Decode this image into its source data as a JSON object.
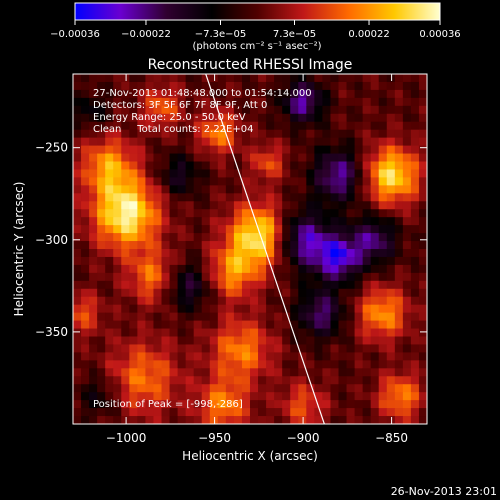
{
  "chart_data": {
    "type": "heatmap",
    "title": "Reconstructed RHESSI Image",
    "xlabel": "Heliocentric X (arcsec)",
    "ylabel": "Heliocentric Y (arcsec)",
    "xlim": [
      -1030,
      -830
    ],
    "ylim": [
      -400,
      -210
    ],
    "x_ticks": [
      -1000,
      -950,
      -900,
      -850
    ],
    "x_tick_labels": [
      "−1000",
      "−950",
      "−900",
      "−850"
    ],
    "y_ticks": [
      -250,
      -300,
      -350
    ],
    "y_tick_labels": [
      "−250",
      "−300",
      "−350"
    ],
    "colorbar": {
      "range": [
        -0.00036,
        0.00036
      ],
      "ticks": [
        -0.00036,
        -0.00022,
        -7.3e-05,
        7.3e-05,
        0.00022,
        0.00036
      ],
      "tick_labels": [
        "−0.00036",
        "−0.00022",
        "−7.3e−05",
        "7.3e−05",
        "0.00022",
        "0.00036"
      ],
      "unit": "(photons cm⁻² s⁻¹ asec⁻²)",
      "colors": [
        "#0000ff",
        "#6a00d0",
        "#300030",
        "#000000",
        "#500000",
        "#c01818",
        "#ff6a00",
        "#ffc800",
        "#ffffd0"
      ]
    },
    "annotations": [
      "27-Nov-2013 01:48:48.000 to 01:54:14.000",
      "Detectors: 3F 5F 6F 7F 8F 9F, Att 0",
      "Energy Range: 25.0 - 50.0 keV",
      "Clean     Total counts: 2.22E+04"
    ],
    "peak_label": "Position of Peak = [-998,-286]",
    "peak_position": [
      -998,
      -286
    ],
    "limb_line": [
      [
        -955,
        -210
      ],
      [
        -888,
        -400
      ]
    ],
    "sources": [
      {
        "x": -1000,
        "y": -286,
        "s": 13,
        "a": 0.95
      },
      {
        "x": -1010,
        "y": -260,
        "s": 11,
        "a": 0.6
      },
      {
        "x": -985,
        "y": -320,
        "s": 10,
        "a": 0.5
      },
      {
        "x": -925,
        "y": -298,
        "s": 12,
        "a": 0.9
      },
      {
        "x": -940,
        "y": -318,
        "s": 10,
        "a": 0.55
      },
      {
        "x": -948,
        "y": -242,
        "s": 8,
        "a": 0.55
      },
      {
        "x": -920,
        "y": -258,
        "s": 7,
        "a": 0.4
      },
      {
        "x": -850,
        "y": -265,
        "s": 11,
        "a": 0.85
      },
      {
        "x": -855,
        "y": -340,
        "s": 10,
        "a": 0.6
      },
      {
        "x": -935,
        "y": -360,
        "s": 12,
        "a": 0.55
      },
      {
        "x": -990,
        "y": -375,
        "s": 14,
        "a": 0.5
      },
      {
        "x": -945,
        "y": -390,
        "s": 10,
        "a": 0.55
      },
      {
        "x": -900,
        "y": -390,
        "s": 9,
        "a": 0.4
      },
      {
        "x": -845,
        "y": -385,
        "s": 9,
        "a": 0.55
      },
      {
        "x": -1025,
        "y": -340,
        "s": 8,
        "a": 0.4
      },
      {
        "x": -980,
        "y": -228,
        "s": 8,
        "a": 0.45
      },
      {
        "x": -900,
        "y": -225,
        "s": 8,
        "a": -0.7
      },
      {
        "x": -880,
        "y": -265,
        "s": 10,
        "a": -0.7
      },
      {
        "x": -900,
        "y": -300,
        "s": 11,
        "a": -0.75
      },
      {
        "x": -880,
        "y": -310,
        "s": 9,
        "a": -0.8
      },
      {
        "x": -860,
        "y": -300,
        "s": 9,
        "a": -0.6
      },
      {
        "x": -890,
        "y": -340,
        "s": 9,
        "a": -0.6
      },
      {
        "x": -965,
        "y": -325,
        "s": 9,
        "a": -0.5
      },
      {
        "x": -970,
        "y": -265,
        "s": 8,
        "a": -0.4
      },
      {
        "x": -1020,
        "y": -230,
        "s": 7,
        "a": -0.3
      },
      {
        "x": -1015,
        "y": -385,
        "s": 8,
        "a": -0.3
      }
    ]
  },
  "footer": {
    "timestamp": "26-Nov-2013 23:01"
  }
}
